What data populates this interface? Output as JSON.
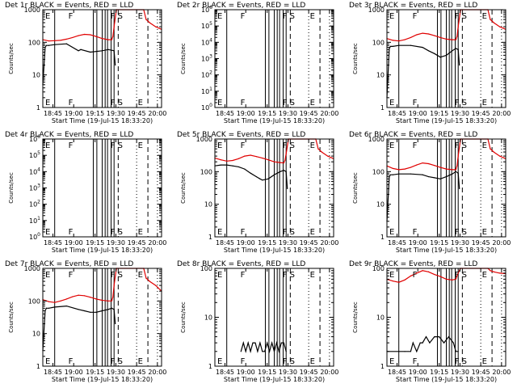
{
  "colors": {
    "events": "#000000",
    "lld": "#e00000",
    "axes": "#000000"
  },
  "common": {
    "xlabel": "Start Time (19-Jul-15 18:33:20)",
    "ylabel": "Counts/sec",
    "xticks": [
      "18:45",
      "19:00",
      "19:15",
      "19:30",
      "19:45",
      "20:00"
    ],
    "event_markers": [
      "E",
      "F",
      "F",
      "S",
      "E"
    ]
  },
  "chart_data": [
    {
      "type": "line",
      "title": "Det 1r BLACK = Events, RED = LLD",
      "scale": "log",
      "ylim": [
        1,
        1000
      ],
      "ytick_labels": [
        "1",
        "10",
        "100",
        "1000"
      ],
      "series": [
        {
          "name": "Events",
          "x": [
            0.0,
            0.02,
            0.03,
            0.05,
            0.1,
            0.2,
            0.3,
            0.32,
            0.4,
            0.5,
            0.55,
            0.6,
            0.61
          ],
          "y": [
            5,
            70,
            80,
            80,
            85,
            90,
            55,
            60,
            50,
            55,
            60,
            55,
            20
          ]
        },
        {
          "name": "LLD",
          "x": [
            0.0,
            0.05,
            0.1,
            0.15,
            0.2,
            0.25,
            0.3,
            0.35,
            0.4,
            0.45,
            0.5,
            0.55,
            0.58,
            0.59,
            0.6,
            0.62,
            0.85,
            0.87,
            0.9,
            0.95,
            1.0
          ],
          "y": [
            120,
            110,
            112,
            115,
            125,
            140,
            160,
            175,
            170,
            150,
            130,
            120,
            120,
            150,
            300,
            1000,
            1000,
            500,
            400,
            300,
            250
          ]
        }
      ]
    },
    {
      "type": "line",
      "title": "Det 2r BLACK = Events, RED = LLD",
      "scale": "log",
      "ylim": [
        1,
        1000000
      ],
      "ytick_labels": [
        "10^0",
        "10^1",
        "10^2",
        "10^3",
        "10^4",
        "10^5",
        "10^6"
      ],
      "series": []
    },
    {
      "type": "line",
      "title": "Det 3r BLACK = Events, RED = LLD",
      "scale": "log",
      "ylim": [
        1,
        1000
      ],
      "ytick_labels": [
        "1",
        "10",
        "100",
        "1000"
      ],
      "series": [
        {
          "name": "Events",
          "x": [
            0.0,
            0.02,
            0.03,
            0.05,
            0.1,
            0.2,
            0.3,
            0.35,
            0.4,
            0.45,
            0.5,
            0.55,
            0.58,
            0.6,
            0.61
          ],
          "y": [
            2,
            65,
            75,
            75,
            80,
            80,
            70,
            55,
            45,
            35,
            40,
            55,
            65,
            60,
            20
          ]
        },
        {
          "name": "LLD",
          "x": [
            0.0,
            0.05,
            0.1,
            0.15,
            0.2,
            0.25,
            0.3,
            0.35,
            0.4,
            0.45,
            0.5,
            0.55,
            0.58,
            0.59,
            0.6,
            0.62,
            0.85,
            0.87,
            0.9,
            0.95,
            1.0
          ],
          "y": [
            130,
            115,
            110,
            120,
            140,
            170,
            190,
            180,
            160,
            140,
            125,
            120,
            120,
            150,
            300,
            1000,
            1000,
            500,
            400,
            300,
            250
          ]
        }
      ]
    },
    {
      "type": "line",
      "title": "Det 4r BLACK = Events, RED = LLD",
      "scale": "log",
      "ylim": [
        1,
        1000000
      ],
      "ytick_labels": [
        "10^0",
        "10^1",
        "10^2",
        "10^3",
        "10^4",
        "10^5",
        "10^6"
      ],
      "series": []
    },
    {
      "type": "line",
      "title": "Det 5r BLACK = Events, RED = LLD",
      "scale": "log",
      "ylim": [
        1,
        1000
      ],
      "ytick_labels": [
        "1",
        "10",
        "100",
        "1000"
      ],
      "series": [
        {
          "name": "Events",
          "x": [
            0.0,
            0.05,
            0.1,
            0.15,
            0.2,
            0.25,
            0.3,
            0.35,
            0.38,
            0.4,
            0.45,
            0.5,
            0.55,
            0.58,
            0.6,
            0.61
          ],
          "y": [
            150,
            160,
            160,
            150,
            140,
            120,
            90,
            70,
            60,
            55,
            60,
            80,
            100,
            110,
            100,
            30
          ]
        },
        {
          "name": "LLD",
          "x": [
            0.0,
            0.05,
            0.1,
            0.15,
            0.2,
            0.25,
            0.3,
            0.35,
            0.4,
            0.45,
            0.5,
            0.55,
            0.58,
            0.59,
            0.6,
            0.62,
            0.85,
            0.87,
            0.9,
            0.95,
            1.0
          ],
          "y": [
            260,
            230,
            210,
            220,
            250,
            300,
            320,
            290,
            260,
            230,
            200,
            190,
            185,
            220,
            350,
            1000,
            1000,
            500,
            400,
            300,
            250
          ]
        }
      ]
    },
    {
      "type": "line",
      "title": "Det 6r BLACK = Events, RED = LLD",
      "scale": "log",
      "ylim": [
        1,
        1000
      ],
      "ytick_labels": [
        "1",
        "10",
        "100",
        "1000"
      ],
      "series": [
        {
          "name": "Events",
          "x": [
            0.0,
            0.02,
            0.03,
            0.05,
            0.1,
            0.2,
            0.3,
            0.35,
            0.4,
            0.45,
            0.5,
            0.55,
            0.58,
            0.6,
            0.61
          ],
          "y": [
            3,
            70,
            80,
            80,
            85,
            85,
            80,
            70,
            65,
            60,
            70,
            85,
            100,
            90,
            30
          ]
        },
        {
          "name": "LLD",
          "x": [
            0.0,
            0.05,
            0.1,
            0.15,
            0.2,
            0.25,
            0.3,
            0.35,
            0.4,
            0.45,
            0.5,
            0.55,
            0.58,
            0.59,
            0.6,
            0.62,
            0.85,
            0.87,
            0.9,
            0.95,
            1.0
          ],
          "y": [
            150,
            125,
            115,
            120,
            135,
            160,
            185,
            175,
            155,
            135,
            120,
            115,
            115,
            150,
            300,
            1000,
            1000,
            500,
            400,
            300,
            250
          ]
        }
      ]
    },
    {
      "type": "line",
      "title": "Det 7r BLACK = Events, RED = LLD",
      "scale": "log",
      "ylim": [
        1,
        1000
      ],
      "ytick_labels": [
        "1",
        "10",
        "100",
        "1000"
      ],
      "series": [
        {
          "name": "Events",
          "x": [
            0.0,
            0.02,
            0.03,
            0.05,
            0.1,
            0.2,
            0.3,
            0.35,
            0.4,
            0.45,
            0.5,
            0.55,
            0.58,
            0.6,
            0.61
          ],
          "y": [
            3,
            50,
            60,
            60,
            65,
            70,
            55,
            50,
            45,
            45,
            50,
            55,
            60,
            55,
            20
          ]
        },
        {
          "name": "LLD",
          "x": [
            0.0,
            0.05,
            0.1,
            0.15,
            0.2,
            0.25,
            0.3,
            0.35,
            0.4,
            0.45,
            0.5,
            0.55,
            0.58,
            0.59,
            0.6,
            0.62,
            0.85,
            0.87,
            0.9,
            0.95,
            1.0
          ],
          "y": [
            110,
            95,
            90,
            100,
            115,
            135,
            150,
            145,
            130,
            115,
            105,
            100,
            100,
            130,
            300,
            1000,
            1000,
            500,
            400,
            300,
            200
          ]
        }
      ]
    },
    {
      "type": "line",
      "title": "Det 8r BLACK = Events, RED = LLD",
      "scale": "log",
      "ylim": [
        1,
        100
      ],
      "ytick_labels": [
        "1",
        "10",
        "100"
      ],
      "series": [
        {
          "name": "Events",
          "x": [
            0.22,
            0.24,
            0.26,
            0.28,
            0.3,
            0.32,
            0.34,
            0.36,
            0.38,
            0.4,
            0.42,
            0.44,
            0.46,
            0.48,
            0.5,
            0.52,
            0.54,
            0.56,
            0.58,
            0.6
          ],
          "y": [
            2,
            3,
            2,
            3,
            2,
            3,
            3,
            2,
            3,
            2,
            2,
            3,
            2,
            3,
            2,
            3,
            2,
            3,
            3,
            2
          ]
        }
      ]
    },
    {
      "type": "line",
      "title": "Det 9r BLACK = Events, RED = LLD",
      "scale": "log",
      "ylim": [
        1,
        100
      ],
      "ytick_labels": [
        "1",
        "10",
        "100"
      ],
      "series": [
        {
          "name": "Events",
          "x": [
            0.0,
            0.1,
            0.15,
            0.2,
            0.22,
            0.25,
            0.28,
            0.3,
            0.33,
            0.36,
            0.4,
            0.44,
            0.48,
            0.52,
            0.56,
            0.58,
            0.6
          ],
          "y": [
            2,
            2,
            2,
            2,
            3,
            2,
            3,
            3,
            4,
            3,
            4,
            4,
            3,
            4,
            3,
            2,
            2
          ]
        },
        {
          "name": "LLD",
          "x": [
            0.0,
            0.05,
            0.1,
            0.15,
            0.2,
            0.25,
            0.3,
            0.35,
            0.4,
            0.45,
            0.5,
            0.55,
            0.58,
            0.6,
            0.62,
            0.85,
            0.87,
            0.9,
            0.95,
            1.0
          ],
          "y": [
            60,
            55,
            52,
            58,
            70,
            80,
            90,
            85,
            75,
            68,
            60,
            58,
            60,
            80,
            100,
            100,
            90,
            85,
            80,
            78
          ]
        }
      ]
    }
  ]
}
